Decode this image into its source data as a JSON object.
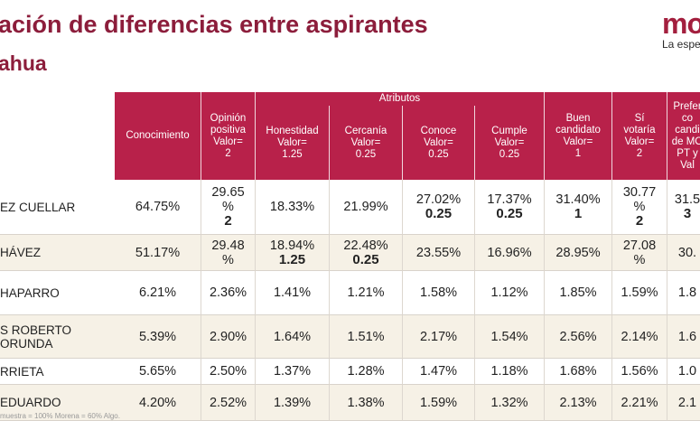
{
  "header": {
    "title": "ación de diferencias entre aspirantes",
    "subtitle": "ahua",
    "logo_text": "mo",
    "tagline": "La espe"
  },
  "table": {
    "group_label": "Atributos",
    "columns": [
      "Conocimiento",
      "Opinión\npositiva\nValor=\n2",
      "Honestidad\nValor=\n1.25",
      "Cercanía\nValor=\n0.25",
      "Conoce\nValor=\n0.25",
      "Cumple\nValor=\n0.25",
      "Buen\ncandidato\nValor=\n1",
      "Sí\nvotaría\nValor=\n2",
      "Prefer\nco\ncandi\nde MO\nPT y\nVal"
    ],
    "rows": [
      {
        "name": "EZ CUELLAR",
        "cells": [
          {
            "v": "64.75%",
            "b": ""
          },
          {
            "v": "29.65\n%",
            "b": "2"
          },
          {
            "v": "18.33%",
            "b": ""
          },
          {
            "v": "21.99%",
            "b": ""
          },
          {
            "v": "27.02%",
            "b": "0.25"
          },
          {
            "v": "17.37%",
            "b": "0.25"
          },
          {
            "v": "31.40%",
            "b": "1"
          },
          {
            "v": "30.77\n%",
            "b": "2"
          },
          {
            "v": "31.5",
            "b": "3"
          }
        ]
      },
      {
        "name": "HÁVEZ",
        "cells": [
          {
            "v": "51.17%",
            "b": ""
          },
          {
            "v": "29.48\n%",
            "b": ""
          },
          {
            "v": "18.94%",
            "b": "1.25"
          },
          {
            "v": "22.48%",
            "b": "0.25"
          },
          {
            "v": "23.55%",
            "b": ""
          },
          {
            "v": "16.96%",
            "b": ""
          },
          {
            "v": "28.95%",
            "b": ""
          },
          {
            "v": "27.08\n%",
            "b": ""
          },
          {
            "v": "30.",
            "b": ""
          }
        ]
      },
      {
        "name": "HAPARRO",
        "cells": [
          {
            "v": "6.21%",
            "b": ""
          },
          {
            "v": "2.36%",
            "b": ""
          },
          {
            "v": "1.41%",
            "b": ""
          },
          {
            "v": "1.21%",
            "b": ""
          },
          {
            "v": "1.58%",
            "b": ""
          },
          {
            "v": "1.12%",
            "b": ""
          },
          {
            "v": "1.85%",
            "b": ""
          },
          {
            "v": "1.59%",
            "b": ""
          },
          {
            "v": "1.8",
            "b": ""
          }
        ]
      },
      {
        "name": "S ROBERTO\nORUNDA",
        "cells": [
          {
            "v": "5.39%",
            "b": ""
          },
          {
            "v": "2.90%",
            "b": ""
          },
          {
            "v": "1.64%",
            "b": ""
          },
          {
            "v": "1.51%",
            "b": ""
          },
          {
            "v": "2.17%",
            "b": ""
          },
          {
            "v": "1.54%",
            "b": ""
          },
          {
            "v": "2.56%",
            "b": ""
          },
          {
            "v": "2.14%",
            "b": ""
          },
          {
            "v": "1.6",
            "b": ""
          }
        ]
      },
      {
        "name": "RRIETA",
        "cells": [
          {
            "v": "5.65%",
            "b": ""
          },
          {
            "v": "2.50%",
            "b": ""
          },
          {
            "v": "1.37%",
            "b": ""
          },
          {
            "v": "1.28%",
            "b": ""
          },
          {
            "v": "1.47%",
            "b": ""
          },
          {
            "v": "1.18%",
            "b": ""
          },
          {
            "v": "1.68%",
            "b": ""
          },
          {
            "v": "1.56%",
            "b": ""
          },
          {
            "v": "1.0",
            "b": ""
          }
        ]
      },
      {
        "name": "EDUARDO",
        "cells": [
          {
            "v": "4.20%",
            "b": ""
          },
          {
            "v": "2.52%",
            "b": ""
          },
          {
            "v": "1.39%",
            "b": ""
          },
          {
            "v": "1.38%",
            "b": ""
          },
          {
            "v": "1.59%",
            "b": ""
          },
          {
            "v": "1.32%",
            "b": ""
          },
          {
            "v": "2.13%",
            "b": ""
          },
          {
            "v": "2.21%",
            "b": ""
          },
          {
            "v": "2.1",
            "b": ""
          }
        ]
      }
    ]
  },
  "footer": "muestra = 100% Morena = 60% Algo.",
  "colors": {
    "title": "#8c1d3b",
    "header_bg": "#b8214a",
    "row_shade": "#f6f1e6"
  }
}
